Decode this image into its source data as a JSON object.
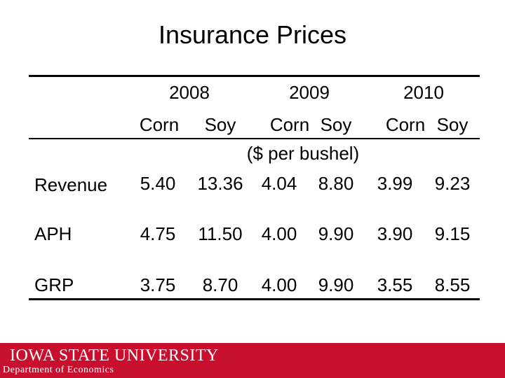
{
  "title": "Insurance Prices",
  "years": [
    "2008",
    "2009",
    "2010"
  ],
  "crops": [
    "Corn",
    "Soy",
    "Corn",
    "Soy",
    "Corn",
    "Soy"
  ],
  "unit": "($ per bushel)",
  "rows": [
    {
      "label": "Revenue",
      "values": [
        "5.40",
        "13.36",
        "4.04",
        "8.80",
        "3.99",
        "9.23"
      ]
    },
    {
      "label": "APH",
      "values": [
        "4.75",
        "11.50",
        "4.00",
        "9.90",
        "3.90",
        "9.15"
      ]
    },
    {
      "label": "GRP",
      "values": [
        "3.75",
        "8.70",
        "4.00",
        "9.90",
        "3.55",
        "8.55"
      ]
    }
  ],
  "footer": {
    "university": "IOWA STATE UNIVERSITY",
    "department": "Department of Economics"
  },
  "colors": {
    "footer_bg": "#c8102e",
    "footer_text": "#ffffff"
  }
}
